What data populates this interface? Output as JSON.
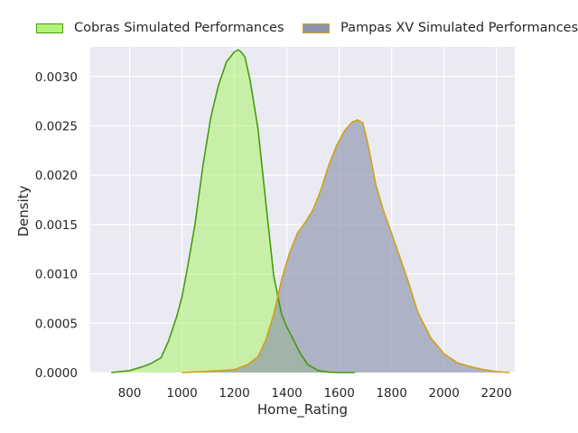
{
  "chart_data": {
    "type": "area",
    "title": "",
    "xlabel": "Home_Rating",
    "ylabel": "Density",
    "xlim": [
      650,
      2270
    ],
    "ylim": [
      0,
      0.0033
    ],
    "xticks": [
      800,
      1000,
      1200,
      1400,
      1600,
      1800,
      2000,
      2200
    ],
    "yticks": [
      0.0,
      0.0005,
      0.001,
      0.0015,
      0.002,
      0.0025,
      0.003
    ],
    "ytick_labels": [
      "0.0000",
      "0.0005",
      "0.0010",
      "0.0015",
      "0.0020",
      "0.0025",
      "0.0030"
    ],
    "grid": true,
    "legend_position": "top",
    "series": [
      {
        "name": "Cobras Simulated Performances",
        "line_color": "#4a9a0e",
        "fill_color": "#b3f27a",
        "x": [
          730,
          800,
          850,
          880,
          920,
          950,
          980,
          1000,
          1020,
          1050,
          1080,
          1110,
          1140,
          1170,
          1200,
          1215,
          1225,
          1240,
          1260,
          1290,
          1320,
          1350,
          1380,
          1400,
          1420,
          1450,
          1480,
          1520,
          1560,
          1600,
          1640,
          1660
        ],
        "y": [
          0.0,
          2e-05,
          6e-05,
          9e-05,
          0.00015,
          0.00033,
          0.00057,
          0.00077,
          0.00105,
          0.00151,
          0.0021,
          0.00259,
          0.00292,
          0.00315,
          0.00325,
          0.00327,
          0.00325,
          0.0032,
          0.00296,
          0.00247,
          0.00172,
          0.00098,
          0.00059,
          0.00046,
          0.00036,
          0.0002,
          8e-05,
          2e-05,
          4e-06,
          0.0,
          0.0,
          0.0
        ]
      },
      {
        "name": "Pampas XV Simulated Performances",
        "line_color": "#d4a017",
        "fill_color": "#8c93aa",
        "x": [
          1000,
          1080,
          1150,
          1200,
          1250,
          1290,
          1320,
          1350,
          1380,
          1410,
          1440,
          1470,
          1500,
          1530,
          1560,
          1590,
          1620,
          1650,
          1670,
          1690,
          1710,
          1740,
          1770,
          1800,
          1830,
          1860,
          1900,
          1950,
          2000,
          2050,
          2100,
          2150,
          2200,
          2250
        ],
        "y": [
          0.0,
          1e-05,
          2e-05,
          3e-05,
          8e-05,
          0.00016,
          0.00033,
          0.00059,
          0.00094,
          0.00121,
          0.00141,
          0.00152,
          0.00165,
          0.00185,
          0.0021,
          0.0023,
          0.00245,
          0.00254,
          0.00256,
          0.00253,
          0.00231,
          0.0019,
          0.00163,
          0.00141,
          0.00118,
          0.00095,
          0.00061,
          0.00035,
          0.00019,
          0.0001,
          6e-05,
          3e-05,
          1e-05,
          0.0
        ]
      }
    ]
  }
}
